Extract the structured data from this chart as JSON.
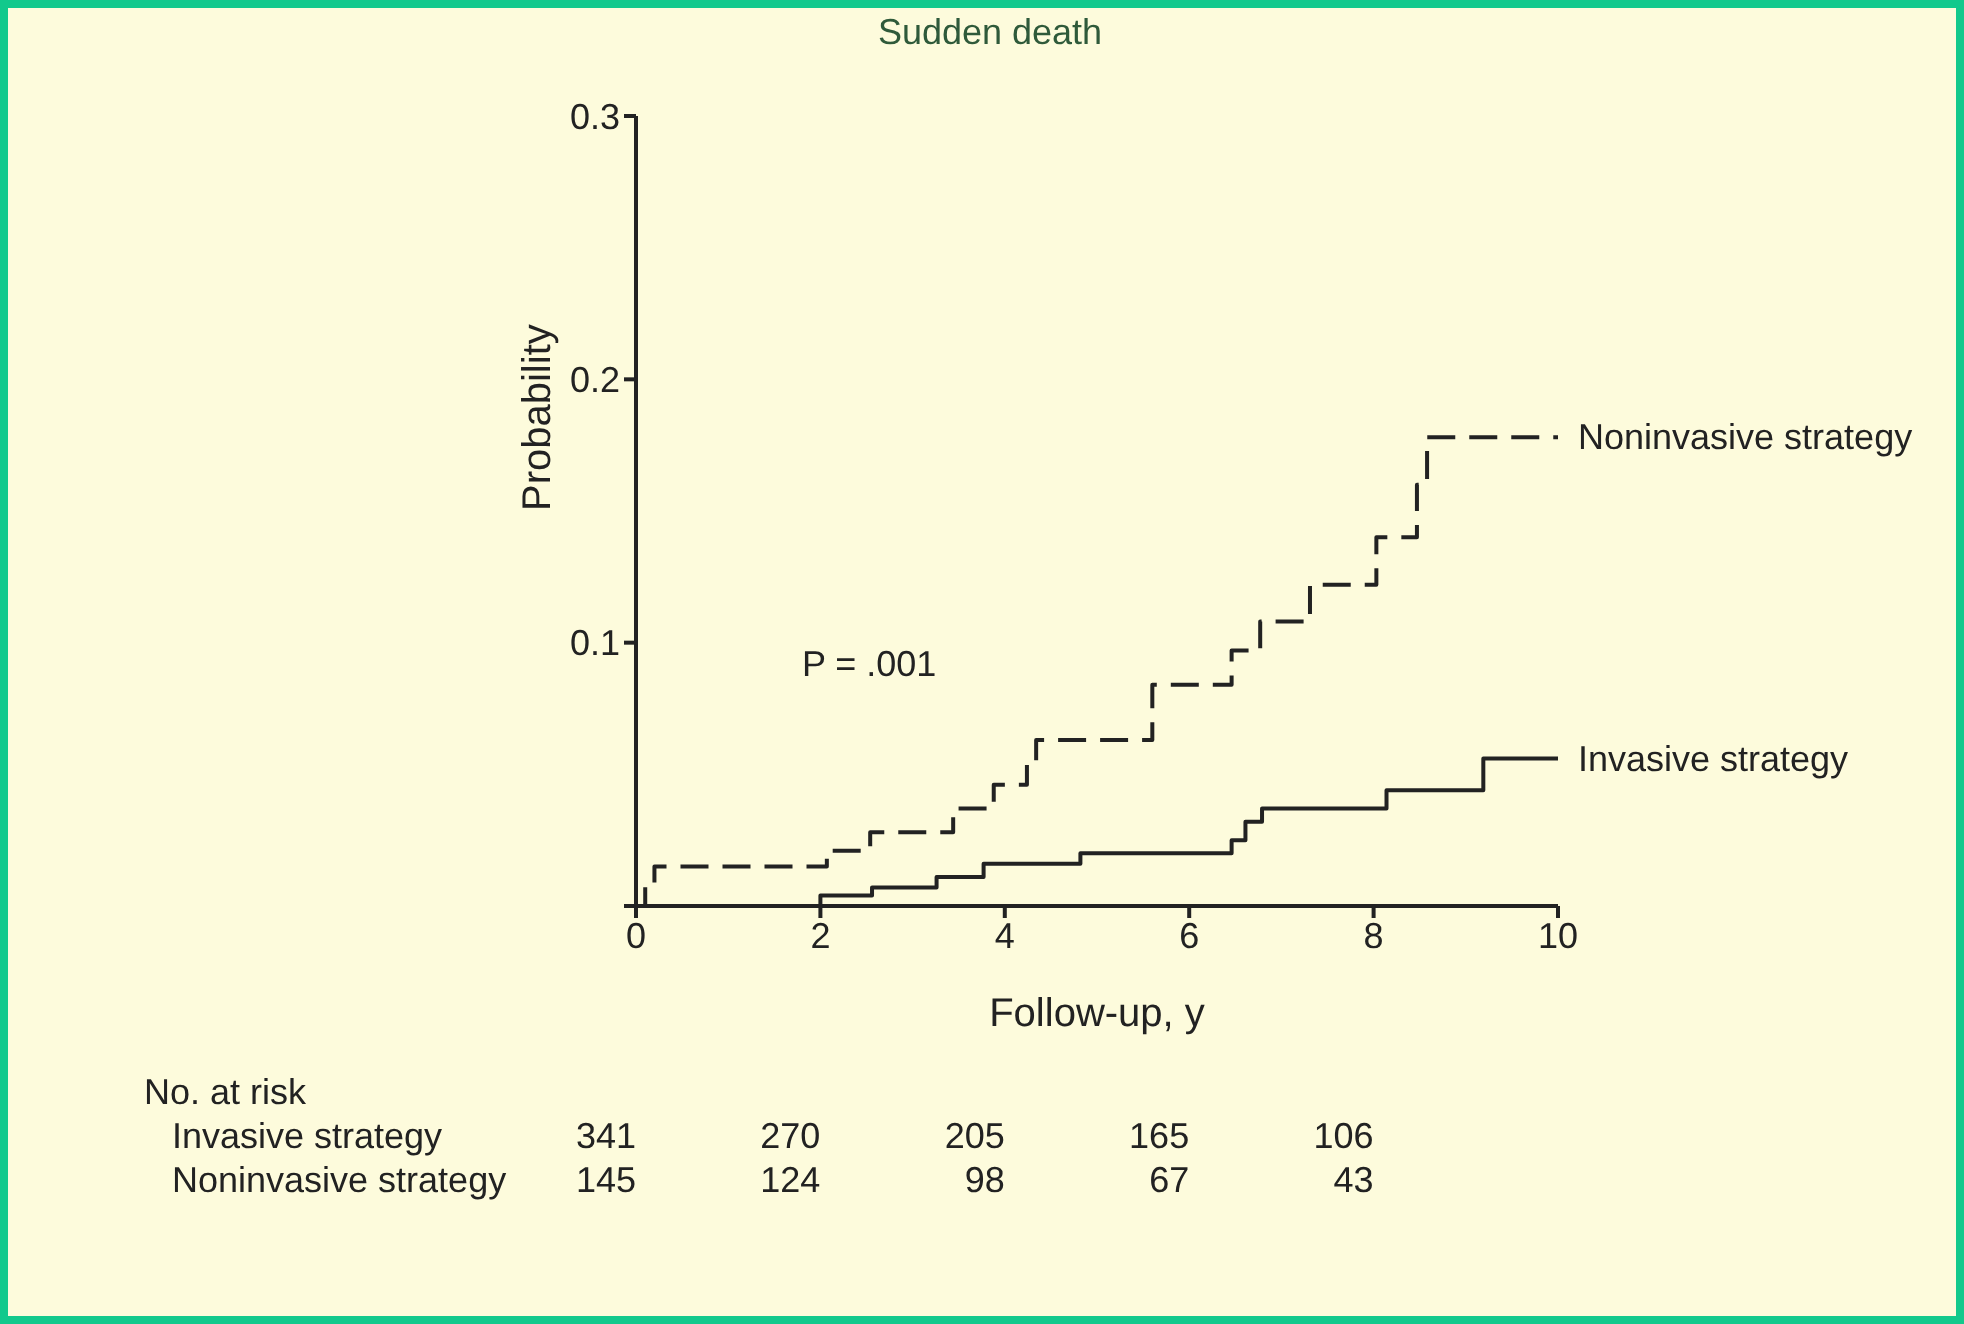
{
  "chart_data": {
    "type": "step",
    "title": "Sudden death",
    "xlabel": "Follow-up, y",
    "ylabel": "Probability",
    "xlim": [
      0,
      10
    ],
    "xticks": [
      0,
      2,
      4,
      6,
      8,
      10
    ],
    "ylim": [
      0,
      0.3
    ],
    "yticks": [
      {
        "value": 0,
        "label": null
      },
      0.1,
      0.2,
      0.3
    ],
    "grid": false,
    "legend": false,
    "marker": "none",
    "series": [
      {
        "name": "Noninvasive strategy",
        "color": "#222222",
        "line_style": "dashed",
        "x": [
          0,
          0.1,
          0.2,
          2.07,
          2.54,
          3.44,
          3.88,
          4.24,
          4.34,
          5.6,
          6.46,
          6.77,
          7.31,
          8.03,
          8.47,
          8.58,
          10
        ],
        "values": [
          0,
          0.008,
          0.015,
          0.021,
          0.028,
          0.037,
          0.046,
          0.054,
          0.063,
          0.084,
          0.097,
          0.108,
          0.122,
          0.14,
          0.16,
          0.178,
          0.178
        ]
      },
      {
        "name": "Invasive strategy",
        "color": "#222222",
        "line_style": "solid",
        "x": [
          1.9,
          2.0,
          2.56,
          3.26,
          3.77,
          4.82,
          6.46,
          6.61,
          6.79,
          8.14,
          9.19,
          10
        ],
        "values": [
          0,
          0.004,
          0.007,
          0.011,
          0.016,
          0.02,
          0.025,
          0.032,
          0.037,
          0.044,
          0.056,
          0.056
        ]
      }
    ],
    "annotations": [
      "P = .001",
      "No. at risk",
      "Invasive strategy",
      "341",
      "270",
      "205",
      "165",
      "106",
      "Noninvasive strategy",
      "145",
      "124",
      "98",
      "67",
      "43"
    ]
  }
}
